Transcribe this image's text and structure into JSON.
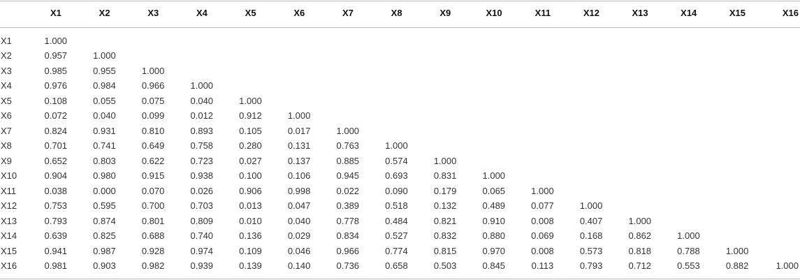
{
  "table": {
    "columns": [
      "X1",
      "X2",
      "X3",
      "X4",
      "X5",
      "X6",
      "X7",
      "X8",
      "X9",
      "X10",
      "X11",
      "X12",
      "X13",
      "X14",
      "X15",
      "X16"
    ],
    "rows": [
      {
        "label": "X1",
        "values": [
          "1.000"
        ]
      },
      {
        "label": "X2",
        "values": [
          "0.957",
          "1.000"
        ]
      },
      {
        "label": "X3",
        "values": [
          "0.985",
          "0.955",
          "1.000"
        ]
      },
      {
        "label": "X4",
        "values": [
          "0.976",
          "0.984",
          "0.966",
          "1.000"
        ]
      },
      {
        "label": "X5",
        "values": [
          "0.108",
          "0.055",
          "0.075",
          "0.040",
          "1.000"
        ]
      },
      {
        "label": "X6",
        "values": [
          "0.072",
          "0.040",
          "0.099",
          "0.012",
          "0.912",
          "1.000"
        ]
      },
      {
        "label": "X7",
        "values": [
          "0.824",
          "0.931",
          "0.810",
          "0.893",
          "0.105",
          "0.017",
          "1.000"
        ]
      },
      {
        "label": "X8",
        "values": [
          "0.701",
          "0.741",
          "0.649",
          "0.758",
          "0.280",
          "0.131",
          "0.763",
          "1.000"
        ]
      },
      {
        "label": "X9",
        "values": [
          "0.652",
          "0.803",
          "0.622",
          "0.723",
          "0.027",
          "0.137",
          "0.885",
          "0.574",
          "1.000"
        ]
      },
      {
        "label": "X10",
        "values": [
          "0.904",
          "0.980",
          "0.915",
          "0.938",
          "0.100",
          "0.106",
          "0.945",
          "0.693",
          "0.831",
          "1.000"
        ]
      },
      {
        "label": "X11",
        "values": [
          "0.038",
          "0.000",
          "0.070",
          "0.026",
          "0.906",
          "0.998",
          "0.022",
          "0.090",
          "0.179",
          "0.065",
          "1.000"
        ]
      },
      {
        "label": "X12",
        "values": [
          "0.753",
          "0.595",
          "0.700",
          "0.703",
          "0.013",
          "0.047",
          "0.389",
          "0.518",
          "0.132",
          "0.489",
          "0.077",
          "1.000"
        ]
      },
      {
        "label": "X13",
        "values": [
          "0.793",
          "0.874",
          "0.801",
          "0.809",
          "0.010",
          "0.040",
          "0.778",
          "0.484",
          "0.821",
          "0.910",
          "0.008",
          "0.407",
          "1.000"
        ]
      },
      {
        "label": "X14",
        "values": [
          "0.639",
          "0.825",
          "0.688",
          "0.740",
          "0.136",
          "0.029",
          "0.834",
          "0.527",
          "0.832",
          "0.880",
          "0.069",
          "0.168",
          "0.862",
          "1.000"
        ]
      },
      {
        "label": "X15",
        "values": [
          "0.941",
          "0.987",
          "0.928",
          "0.974",
          "0.109",
          "0.046",
          "0.966",
          "0.774",
          "0.815",
          "0.970",
          "0.008",
          "0.573",
          "0.818",
          "0.788",
          "1.000"
        ]
      },
      {
        "label": "X16",
        "values": [
          "0.981",
          "0.903",
          "0.982",
          "0.939",
          "0.139",
          "0.140",
          "0.736",
          "0.658",
          "0.503",
          "0.845",
          "0.113",
          "0.793",
          "0.712",
          "0.553",
          "0.882",
          "1.000"
        ]
      }
    ]
  }
}
